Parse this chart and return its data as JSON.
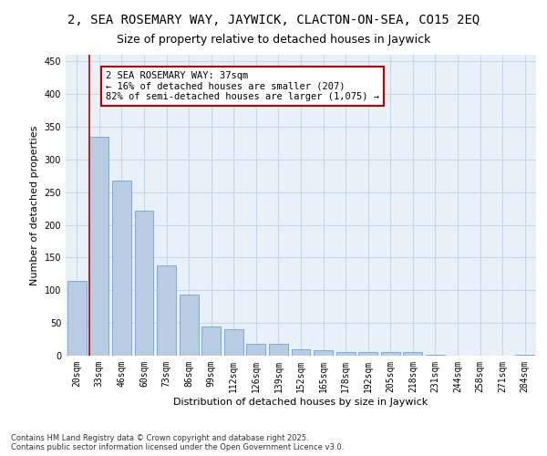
{
  "title": "2, SEA ROSEMARY WAY, JAYWICK, CLACTON-ON-SEA, CO15 2EQ",
  "subtitle": "Size of property relative to detached houses in Jaywick",
  "xlabel": "Distribution of detached houses by size in Jaywick",
  "ylabel": "Number of detached properties",
  "categories": [
    "20sqm",
    "33sqm",
    "46sqm",
    "60sqm",
    "73sqm",
    "86sqm",
    "99sqm",
    "112sqm",
    "126sqm",
    "139sqm",
    "152sqm",
    "165sqm",
    "178sqm",
    "192sqm",
    "205sqm",
    "218sqm",
    "231sqm",
    "244sqm",
    "258sqm",
    "271sqm",
    "284sqm"
  ],
  "values": [
    115,
    335,
    268,
    222,
    138,
    93,
    44,
    40,
    18,
    18,
    10,
    8,
    5,
    5,
    6,
    6,
    1,
    0,
    0,
    0,
    2
  ],
  "bar_color": "#b8cce4",
  "bar_edge_color": "#7AABDB",
  "vline_color": "#c00000",
  "annotation_text": "2 SEA ROSEMARY WAY: 37sqm\n← 16% of detached houses are smaller (207)\n82% of semi-detached houses are larger (1,075) →",
  "annotation_box_color": "#ffffff",
  "annotation_box_edge": "#c00000",
  "ylim": [
    0,
    460
  ],
  "yticks": [
    0,
    50,
    100,
    150,
    200,
    250,
    300,
    350,
    400,
    450
  ],
  "grid_color": "#c8d8e8",
  "bg_color": "#e8f0f8",
  "footer": "Contains HM Land Registry data © Crown copyright and database right 2025.\nContains public sector information licensed under the Open Government Licence v3.0.",
  "title_fontsize": 10,
  "subtitle_fontsize": 9,
  "axis_label_fontsize": 8,
  "tick_fontsize": 7,
  "annotation_fontsize": 7.5,
  "footer_fontsize": 6
}
